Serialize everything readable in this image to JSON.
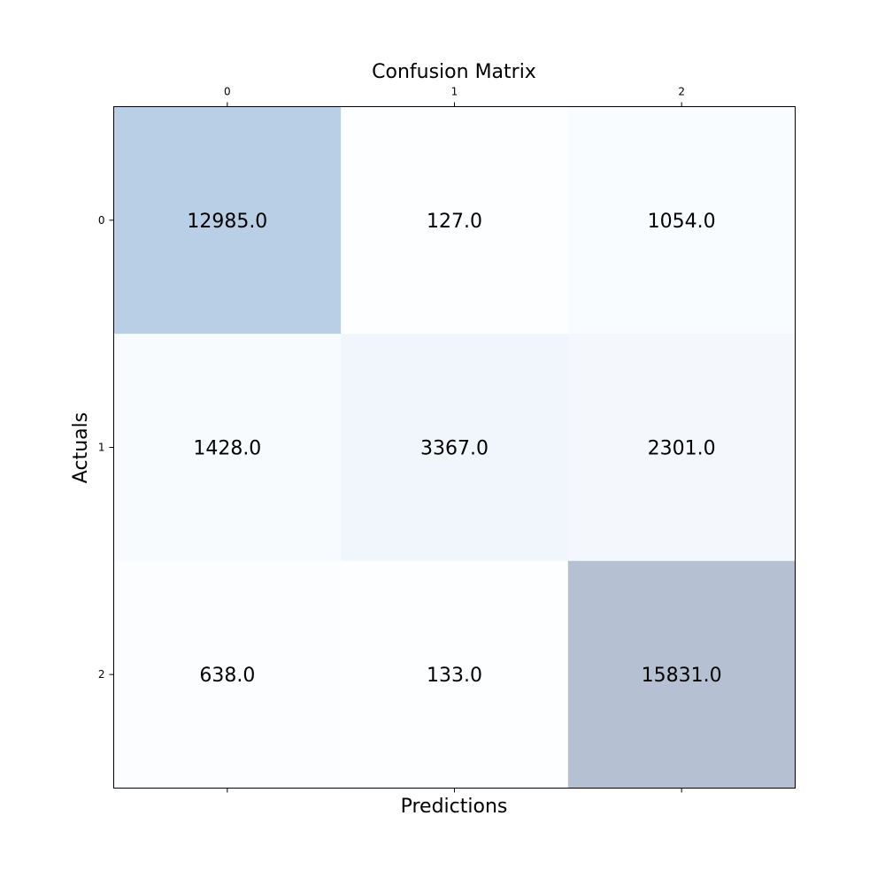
{
  "chart_data": {
    "type": "heatmap",
    "title": "Confusion Matrix",
    "xlabel": "Predictions",
    "ylabel": "Actuals",
    "x_categories": [
      "0",
      "1",
      "2"
    ],
    "y_categories": [
      "0",
      "1",
      "2"
    ],
    "x_ticks_position": "top",
    "values": [
      [
        12985.0,
        127.0,
        1054.0
      ],
      [
        1428.0,
        3367.0,
        2301.0
      ],
      [
        638.0,
        133.0,
        15831.0
      ]
    ],
    "value_labels": [
      [
        "12985.0",
        "127.0",
        "1054.0"
      ],
      [
        "1428.0",
        "3367.0",
        "2301.0"
      ],
      [
        "638.0",
        "133.0",
        "15831.0"
      ]
    ],
    "colormap": "Blues",
    "alpha": 0.3,
    "grid": false,
    "legend": "none"
  }
}
